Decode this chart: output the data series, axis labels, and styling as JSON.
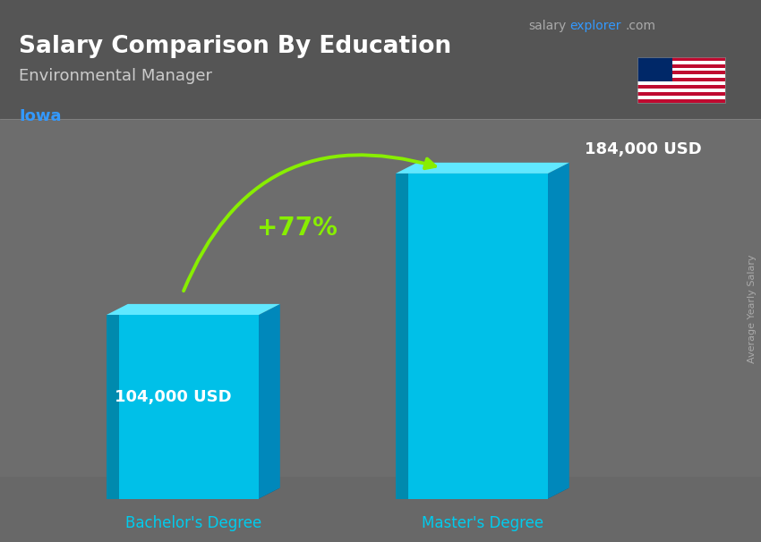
{
  "title": "Salary Comparison By Education",
  "subtitle": "Environmental Manager",
  "location": "Iowa",
  "categories": [
    "Bachelor's Degree",
    "Master's Degree"
  ],
  "values": [
    104000,
    184000
  ],
  "value_labels": [
    "104,000 USD",
    "184,000 USD"
  ],
  "pct_change": "+77%",
  "c_front": "#00c0e8",
  "c_top": "#60e8ff",
  "c_side": "#0088bb",
  "c_dark_side": "#005577",
  "title_color": "#ffffff",
  "subtitle_color": "#cccccc",
  "location_color": "#3399ff",
  "label_color": "#ffffff",
  "xlabel_color": "#00ccee",
  "pct_color": "#88ee00",
  "arrow_color": "#88ee00",
  "bg_top_color": "#606060",
  "bg_bottom_color": "#787878",
  "header_color": "#505050",
  "watermark_salary": "#aaaaaa",
  "watermark_explorer": "#3399ff",
  "watermark_com": "#aaaaaa",
  "ylabel_color": "#aaaaaa",
  "axis_label_rotated": "Average Yearly Salary",
  "figwidth": 8.5,
  "figheight": 6.06
}
